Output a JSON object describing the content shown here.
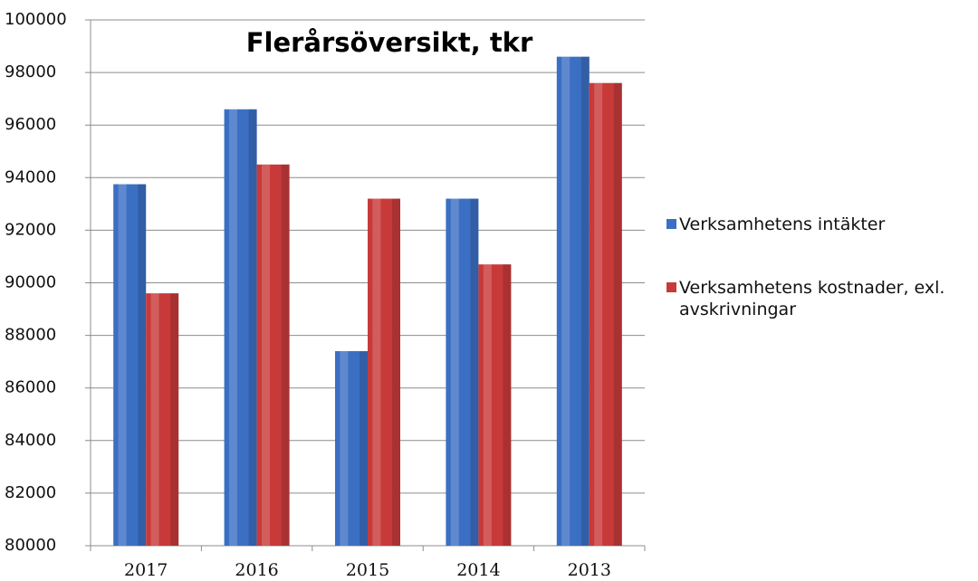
{
  "chart_data": {
    "type": "bar",
    "title": "Flerårsöversikt, tkr",
    "categories": [
      "2017",
      "2016",
      "2015",
      "2014",
      "2013"
    ],
    "series": [
      {
        "name": "Verksamhetens intäkter",
        "color": "#3b6fc4",
        "values": [
          93750,
          96600,
          87400,
          93200,
          98600
        ]
      },
      {
        "name": "Verksamhetens kostnader, exl. avskrivningar",
        "color": "#c83a3a",
        "values": [
          89600,
          94500,
          93200,
          90700,
          97600
        ]
      }
    ],
    "ylim": [
      80000,
      100000
    ],
    "yticks": [
      80000,
      82000,
      84000,
      86000,
      88000,
      90000,
      92000,
      94000,
      96000,
      98000,
      100000
    ],
    "grid": true,
    "legend": "right"
  }
}
